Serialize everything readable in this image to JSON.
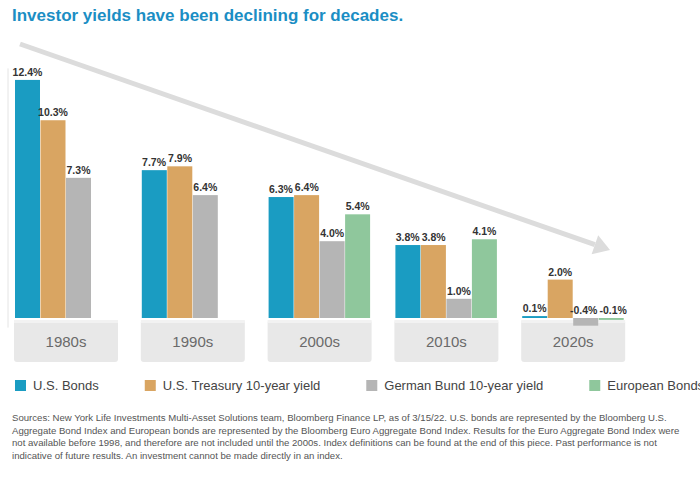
{
  "chart_data": {
    "type": "bar",
    "title": "Investor yields have been declining for decades.",
    "categories": [
      "1980s",
      "1990s",
      "2000s",
      "2010s",
      "2020s"
    ],
    "series": [
      {
        "name": "U.S. Bonds",
        "color": "#1a9cc2",
        "values": [
          12.4,
          7.7,
          6.3,
          3.8,
          0.1
        ],
        "value_labels": [
          "12.4%",
          "7.7%",
          "6.3%",
          "3.8%",
          "0.1%"
        ]
      },
      {
        "name": "U.S. Treasury 10-year yield",
        "color": "#d9a562",
        "values": [
          10.3,
          7.9,
          6.4,
          3.8,
          2.0
        ],
        "value_labels": [
          "10.3%",
          "7.9%",
          "6.4%",
          "3.8%",
          "2.0%"
        ]
      },
      {
        "name": "German Bund 10-year yield",
        "color": "#b5b5b5",
        "values": [
          7.3,
          6.4,
          4.0,
          1.0,
          -0.4
        ],
        "value_labels": [
          "7.3%",
          "6.4%",
          "4.0%",
          "1.0%",
          "-0.4%"
        ]
      },
      {
        "name": "European Bonds",
        "color": "#8fc79c",
        "values": [
          null,
          null,
          5.4,
          4.1,
          -0.1
        ],
        "value_labels": [
          null,
          null,
          "5.4%",
          "4.1%",
          "-0.1%"
        ]
      }
    ],
    "ylim": [
      -0.5,
      13
    ],
    "grid": false,
    "data_labels": true,
    "tick_labels": false,
    "legend": "bottom",
    "source": "Sources: New York Life Investments Multi-Asset Solutions team, Bloomberg Finance LP, as of 3/15/22. U.S. bonds are represented by the Bloomberg U.S. Aggregate Bond Index and European bonds are represented by the Bloomberg Euro Aggregate Bond Index. Results for the Euro Aggregate Bond Index were not available before 1998, and therefore are not included until the 2000s. Index definitions can be found at the end of this piece. Past performance is not indicative of future results. An investment cannot be made directly in an index."
  }
}
